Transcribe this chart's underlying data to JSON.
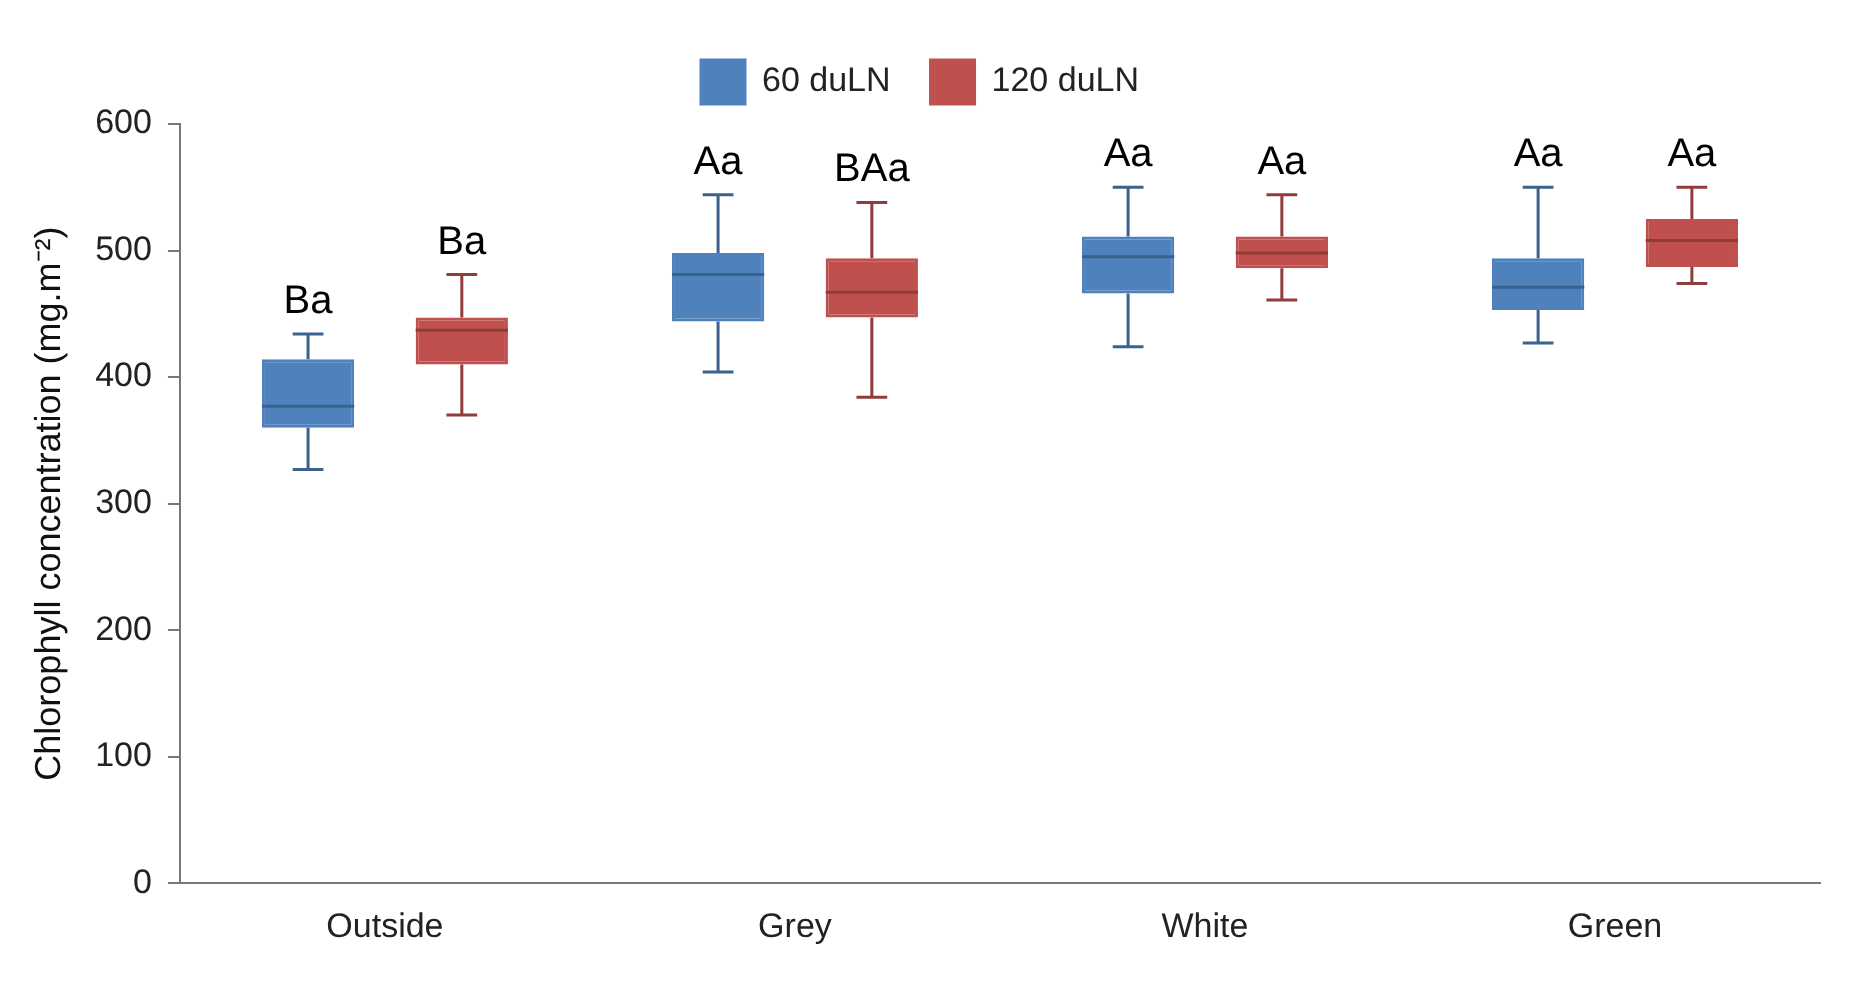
{
  "chart_data": {
    "type": "box",
    "ylabel": "Chlorophyll concentration (mg.m⁻²)",
    "categories": [
      "Outside",
      "Grey",
      "White",
      "Green"
    ],
    "ylim": [
      0,
      600
    ],
    "yticks": [
      0,
      100,
      200,
      300,
      400,
      500,
      600
    ],
    "grid": false,
    "legend": "top",
    "series": [
      {
        "name": "60 duLN",
        "color": "#4f81bd",
        "boxes": [
          {
            "low": 327,
            "q1": 360,
            "median": 377,
            "q3": 414,
            "high": 434
          },
          {
            "low": 404,
            "q1": 444,
            "median": 481,
            "q3": 498,
            "high": 544
          },
          {
            "low": 424,
            "q1": 466,
            "median": 495,
            "q3": 511,
            "high": 550
          },
          {
            "low": 427,
            "q1": 453,
            "median": 471,
            "q3": 494,
            "high": 550
          }
        ]
      },
      {
        "name": "120 duLN",
        "color": "#c0504d",
        "boxes": [
          {
            "low": 370,
            "q1": 410,
            "median": 437,
            "q3": 447,
            "high": 481
          },
          {
            "low": 384,
            "q1": 447,
            "median": 467,
            "q3": 494,
            "high": 538
          },
          {
            "low": 461,
            "q1": 486,
            "median": 498,
            "q3": 511,
            "high": 544
          },
          {
            "low": 474,
            "q1": 487,
            "median": 508,
            "q3": 525,
            "high": 550
          }
        ]
      }
    ],
    "annotations": [
      "Ba",
      "Ba",
      "Aa",
      "BAa",
      "Aa",
      "Aa",
      "Aa",
      "Aa"
    ]
  }
}
